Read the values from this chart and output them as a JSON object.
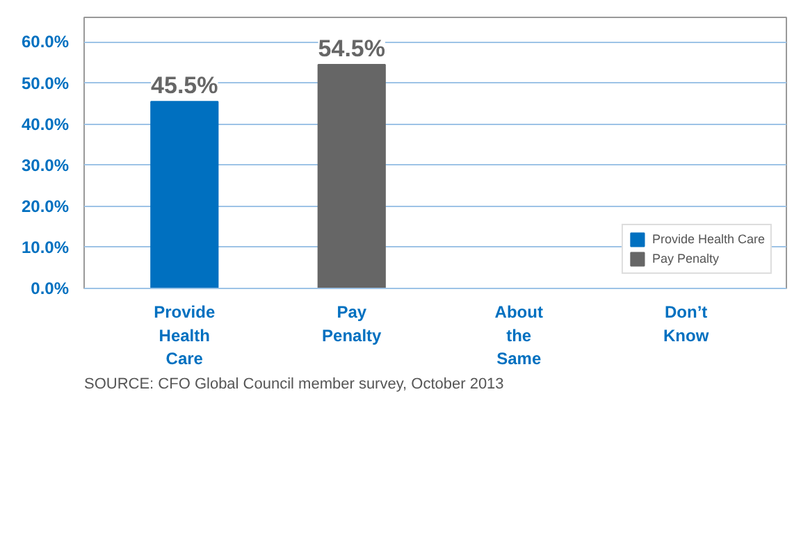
{
  "chart_data": {
    "type": "bar",
    "categories": [
      "Provide\nHealth\nCare",
      "Pay\nPenalty",
      "About\nthe\nSame",
      "Don’t\nKnow"
    ],
    "series": [
      {
        "name": "Provide Health Care",
        "color": "#0070c0",
        "values": [
          45.5,
          null,
          null,
          null
        ]
      },
      {
        "name": "Pay Penalty",
        "color": "#666666",
        "values": [
          null,
          54.5,
          null,
          null
        ]
      }
    ],
    "ylim": [
      0,
      66
    ],
    "yticks": [
      {
        "value": 0,
        "label": "0.0%"
      },
      {
        "value": 10,
        "label": "10.0%"
      },
      {
        "value": 20,
        "label": "20.0%"
      },
      {
        "value": 30,
        "label": "30.0%"
      },
      {
        "value": 40,
        "label": "40.0%"
      },
      {
        "value": 50,
        "label": "50.0%"
      },
      {
        "value": 60,
        "label": "60.0%"
      }
    ],
    "value_labels": [
      "45.5%",
      "54.5%",
      null,
      null
    ],
    "grid": "y",
    "legend": "bottom right",
    "annotations": [
      "SOURCE: CFO Global Council member survey, October 2013"
    ]
  }
}
